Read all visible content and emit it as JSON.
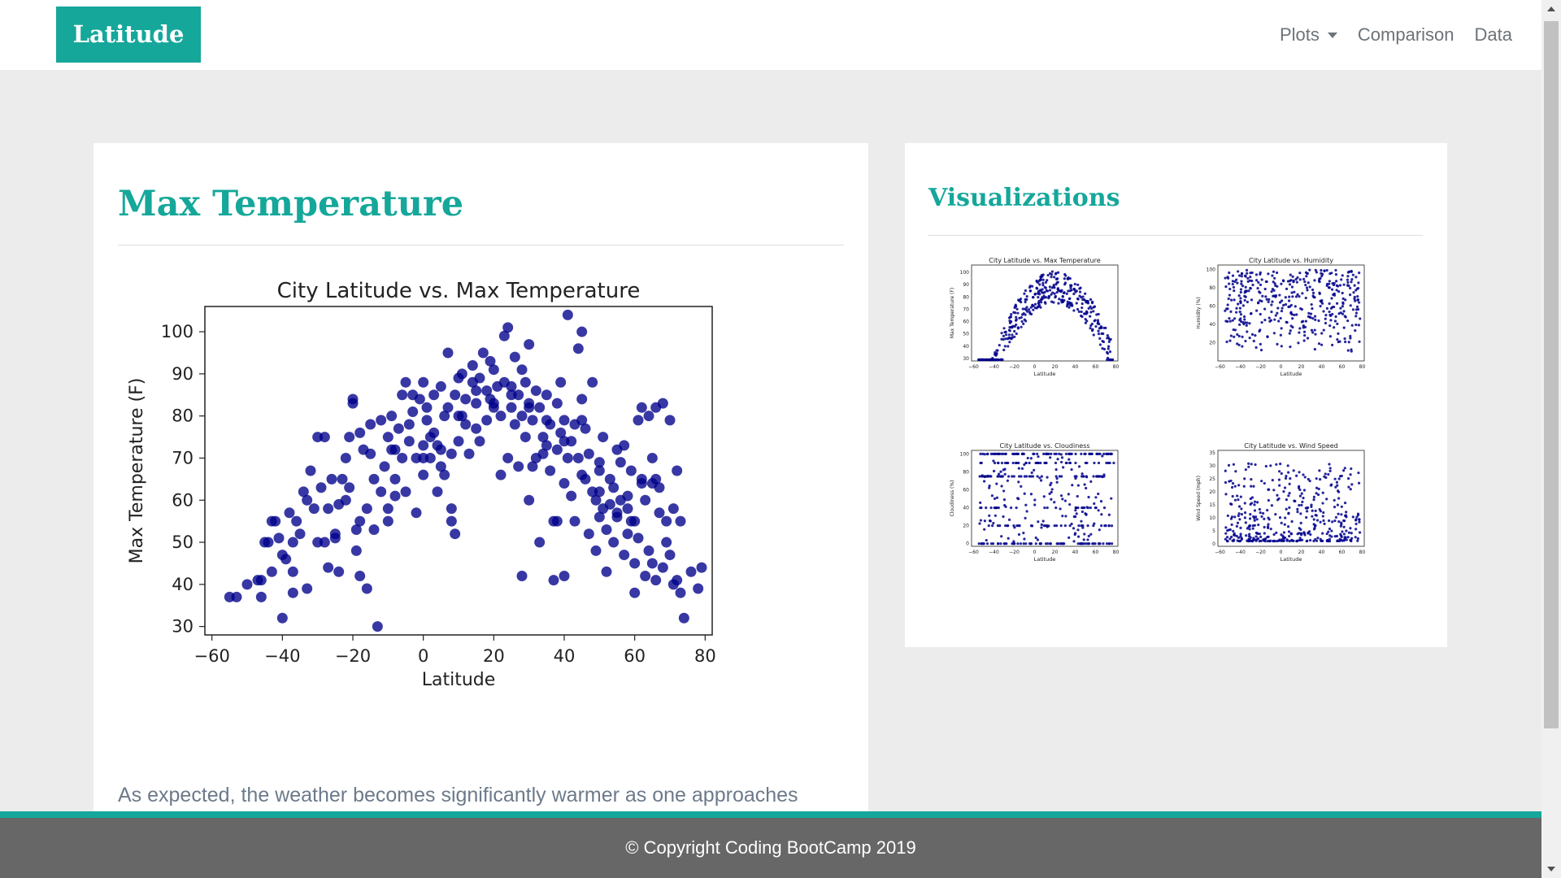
{
  "navbar": {
    "brand": "Latitude",
    "links": [
      {
        "label": "Plots",
        "dropdown": true
      },
      {
        "label": "Comparison"
      },
      {
        "label": "Data"
      }
    ]
  },
  "main": {
    "title": "Max Temperature",
    "caption": "As expected, the weather becomes significantly warmer as one approaches",
    "chart_data": {
      "type": "scatter",
      "title": "City Latitude vs. Max Temperature",
      "xlabel": "Latitude",
      "ylabel": "Max Temperature (F)",
      "xlim": [
        -62,
        82
      ],
      "ylim": [
        28,
        106
      ],
      "xticks": [
        -60,
        -40,
        -20,
        0,
        20,
        40,
        60,
        80
      ],
      "yticks": [
        30,
        40,
        50,
        60,
        70,
        80,
        90,
        100
      ],
      "point_color": "#00008b",
      "grid": false,
      "points": [
        [
          -55,
          37
        ],
        [
          -53,
          37
        ],
        [
          -50,
          40
        ],
        [
          -47,
          41
        ],
        [
          -46,
          41
        ],
        [
          -45,
          50
        ],
        [
          -46,
          37
        ],
        [
          -43,
          43
        ],
        [
          -43,
          55
        ],
        [
          -42,
          55
        ],
        [
          -41,
          51
        ],
        [
          -40,
          32
        ],
        [
          -40,
          47
        ],
        [
          -39,
          46
        ],
        [
          -37,
          43
        ],
        [
          -37,
          38
        ],
        [
          -37,
          50
        ],
        [
          -36,
          55
        ],
        [
          -35,
          52
        ],
        [
          -34,
          62
        ],
        [
          -33,
          39
        ],
        [
          -33,
          60
        ],
        [
          -32,
          67
        ],
        [
          -31,
          58
        ],
        [
          -30,
          75
        ],
        [
          -30,
          50
        ],
        [
          -29,
          63
        ],
        [
          -28,
          75
        ],
        [
          -27,
          58
        ],
        [
          -27,
          44
        ],
        [
          -26,
          65
        ],
        [
          -25,
          51
        ],
        [
          -24,
          43
        ],
        [
          -24,
          59
        ],
        [
          -23,
          65
        ],
        [
          -22,
          70
        ],
        [
          -21,
          75
        ],
        [
          -21,
          63
        ],
        [
          -20,
          83
        ],
        [
          -20,
          84
        ],
        [
          -19,
          53
        ],
        [
          -19,
          48
        ],
        [
          -18,
          42
        ],
        [
          -18,
          76
        ],
        [
          -17,
          72
        ],
        [
          -16,
          39
        ],
        [
          -16,
          58
        ],
        [
          -15,
          78
        ],
        [
          -15,
          71
        ],
        [
          -14,
          65
        ],
        [
          -14,
          53
        ],
        [
          -13,
          30
        ],
        [
          -12,
          62
        ],
        [
          -12,
          79
        ],
        [
          -11,
          68
        ],
        [
          -10,
          58
        ],
        [
          -10,
          75
        ],
        [
          -9,
          72
        ],
        [
          -9,
          80
        ],
        [
          -8,
          65
        ],
        [
          -8,
          61
        ],
        [
          -7,
          77
        ],
        [
          -6,
          70
        ],
        [
          -6,
          85
        ],
        [
          -5,
          62
        ],
        [
          -5,
          88
        ],
        [
          -4,
          78
        ],
        [
          -4,
          74
        ],
        [
          -3,
          81
        ],
        [
          -3,
          85
        ],
        [
          -2,
          70
        ],
        [
          -2,
          57
        ],
        [
          -1,
          84
        ],
        [
          0,
          73
        ],
        [
          0,
          66
        ],
        [
          0,
          88
        ],
        [
          1,
          79
        ],
        [
          1,
          82
        ],
        [
          2,
          70
        ],
        [
          2,
          75
        ],
        [
          3,
          76
        ],
        [
          3,
          85
        ],
        [
          4,
          73
        ],
        [
          4,
          62
        ],
        [
          5,
          87
        ],
        [
          5,
          68
        ],
        [
          6,
          80
        ],
        [
          6,
          66
        ],
        [
          7,
          82
        ],
        [
          7,
          95
        ],
        [
          8,
          71
        ],
        [
          8,
          58
        ],
        [
          8,
          55
        ],
        [
          9,
          52
        ],
        [
          9,
          85
        ],
        [
          10,
          74
        ],
        [
          10,
          89
        ],
        [
          11,
          90
        ],
        [
          11,
          80
        ],
        [
          12,
          78
        ],
        [
          12,
          84
        ],
        [
          13,
          71
        ],
        [
          14,
          92
        ],
        [
          14,
          88
        ],
        [
          15,
          83
        ],
        [
          15,
          77
        ],
        [
          16,
          74
        ],
        [
          16,
          89
        ],
        [
          17,
          95
        ],
        [
          18,
          79
        ],
        [
          18,
          86
        ],
        [
          19,
          93
        ],
        [
          19,
          84
        ],
        [
          20,
          82
        ],
        [
          20,
          91
        ],
        [
          21,
          87
        ],
        [
          22,
          80
        ],
        [
          22,
          66
        ],
        [
          23,
          88
        ],
        [
          23,
          99
        ],
        [
          24,
          101
        ],
        [
          24,
          70
        ],
        [
          25,
          82
        ],
        [
          25,
          87
        ],
        [
          26,
          94
        ],
        [
          26,
          78
        ],
        [
          27,
          85
        ],
        [
          27,
          68
        ],
        [
          28,
          91
        ],
        [
          28,
          80
        ],
        [
          29,
          88
        ],
        [
          29,
          75
        ],
        [
          30,
          83
        ],
        [
          30,
          97
        ],
        [
          31,
          79
        ],
        [
          31,
          68
        ],
        [
          32,
          86
        ],
        [
          32,
          70
        ],
        [
          33,
          82
        ],
        [
          33,
          50
        ],
        [
          34,
          75
        ],
        [
          34,
          71
        ],
        [
          35,
          85
        ],
        [
          35,
          79
        ],
        [
          36,
          78
        ],
        [
          36,
          67
        ],
        [
          37,
          41
        ],
        [
          37,
          55
        ],
        [
          38,
          72
        ],
        [
          38,
          83
        ],
        [
          39,
          88
        ],
        [
          39,
          76
        ],
        [
          40,
          79
        ],
        [
          40,
          64
        ],
        [
          41,
          104
        ],
        [
          41,
          70
        ],
        [
          42,
          74
        ],
        [
          42,
          61
        ],
        [
          43,
          78
        ],
        [
          43,
          55
        ],
        [
          44,
          96
        ],
        [
          44,
          70
        ],
        [
          45,
          100
        ],
        [
          45,
          84
        ],
        [
          46,
          77
        ],
        [
          46,
          65
        ],
        [
          47,
          71
        ],
        [
          47,
          52
        ],
        [
          48,
          88
        ],
        [
          48,
          62
        ],
        [
          49,
          48
        ],
        [
          49,
          60
        ],
        [
          50,
          67
        ],
        [
          50,
          56
        ],
        [
          51,
          75
        ],
        [
          51,
          58
        ],
        [
          52,
          43
        ],
        [
          52,
          53
        ],
        [
          53,
          65
        ],
        [
          53,
          59
        ],
        [
          54,
          63
        ],
        [
          54,
          50
        ],
        [
          55,
          72
        ],
        [
          55,
          56
        ],
        [
          56,
          69
        ],
        [
          56,
          60
        ],
        [
          57,
          73
        ],
        [
          57,
          47
        ],
        [
          58,
          61
        ],
        [
          58,
          52
        ],
        [
          59,
          67
        ],
        [
          59,
          55
        ],
        [
          60,
          45
        ],
        [
          60,
          38
        ],
        [
          61,
          79
        ],
        [
          61,
          51
        ],
        [
          62,
          82
        ],
        [
          62,
          65
        ],
        [
          63,
          60
        ],
        [
          63,
          42
        ],
        [
          64,
          80
        ],
        [
          64,
          48
        ],
        [
          65,
          70
        ],
        [
          65,
          45
        ],
        [
          66,
          82
        ],
        [
          66,
          41
        ],
        [
          67,
          63
        ],
        [
          67,
          57
        ],
        [
          68,
          83
        ],
        [
          68,
          44
        ],
        [
          69,
          50
        ],
        [
          69,
          55
        ],
        [
          70,
          79
        ],
        [
          70,
          47
        ],
        [
          71,
          58
        ],
        [
          71,
          40
        ],
        [
          72,
          67
        ],
        [
          72,
          41
        ],
        [
          73,
          55
        ],
        [
          73,
          38
        ],
        [
          74,
          32
        ],
        [
          76,
          43
        ],
        [
          78,
          39
        ],
        [
          79,
          44
        ],
        [
          40,
          42
        ],
        [
          38,
          55
        ],
        [
          28,
          42
        ],
        [
          30,
          60
        ],
        [
          45,
          79
        ],
        [
          50,
          62
        ],
        [
          55,
          57
        ],
        [
          60,
          55
        ],
        [
          65,
          64
        ],
        [
          -44,
          50
        ],
        [
          -38,
          57
        ],
        [
          -28,
          50
        ],
        [
          -25,
          52
        ],
        [
          -22,
          60
        ],
        [
          -18,
          55
        ],
        [
          -10,
          55
        ],
        [
          -8,
          72
        ],
        [
          0,
          70
        ],
        [
          5,
          72
        ],
        [
          10,
          80
        ],
        [
          15,
          86
        ],
        [
          20,
          83
        ],
        [
          25,
          85
        ],
        [
          30,
          82
        ],
        [
          35,
          73
        ],
        [
          40,
          74
        ],
        [
          45,
          66
        ],
        [
          50,
          69
        ],
        [
          58,
          58
        ],
        [
          62,
          64
        ],
        [
          66,
          65
        ]
      ]
    }
  },
  "sidebar": {
    "title": "Visualizations",
    "thumbnails": [
      {
        "title": "City Latitude vs. Max Temperature",
        "ylabel": "Max Temperature (F)",
        "xlabel": "Latitude",
        "yticks": [
          30,
          40,
          50,
          60,
          70,
          80,
          90,
          100
        ],
        "xticks": [
          -60,
          -40,
          -20,
          0,
          20,
          40,
          60,
          80
        ]
      },
      {
        "title": "City Latitude vs. Humidity",
        "ylabel": "Humidity (%)",
        "xlabel": "Latitude",
        "yticks": [
          20,
          40,
          60,
          80,
          100
        ],
        "xticks": [
          -60,
          -40,
          -20,
          0,
          20,
          40,
          60,
          80
        ]
      },
      {
        "title": "City Latitude vs. Cloudiness",
        "ylabel": "Cloudiness (%)",
        "xlabel": "Latitude",
        "yticks": [
          0,
          20,
          40,
          60,
          80,
          100
        ],
        "xticks": [
          -60,
          -40,
          -20,
          0,
          20,
          40,
          60,
          80
        ]
      },
      {
        "title": "City Latitude vs. Wind Speed",
        "ylabel": "Wind Speed (mph)",
        "xlabel": "Latitude",
        "yticks": [
          0,
          5,
          10,
          15,
          20,
          25,
          30,
          35
        ],
        "xticks": [
          -60,
          -40,
          -20,
          0,
          20,
          40,
          60,
          80
        ]
      }
    ]
  },
  "footer": {
    "text": "© Copyright Coding BootCamp 2019"
  },
  "colors": {
    "accent": "#15a79a",
    "footer": "#676767",
    "background": "#ececec",
    "points": "#00008b"
  }
}
